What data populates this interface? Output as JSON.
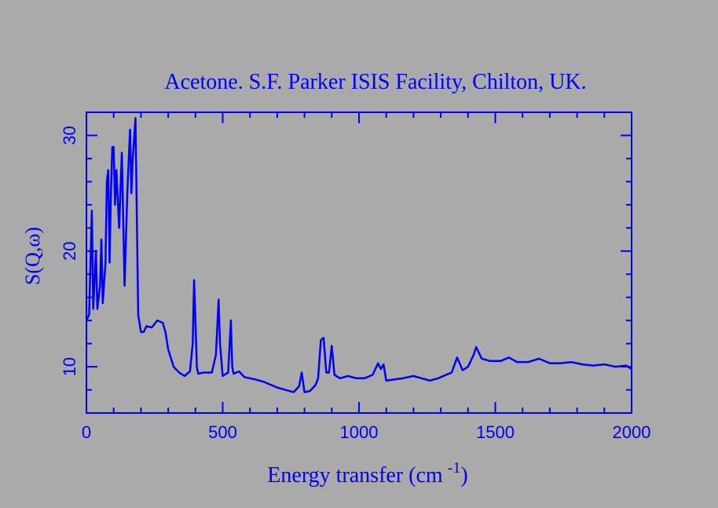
{
  "chart_data": {
    "type": "line",
    "title": "Acetone. S.F. Parker ISIS Facility, Chilton, UK.",
    "ylabel": "S(Q,ω)",
    "xlabel": {
      "main": "Energy transfer (cm",
      "sup": "-1",
      "end": ")"
    },
    "color": "#0000ff",
    "x": [
      0,
      10,
      20,
      25,
      35,
      40,
      50,
      55,
      60,
      70,
      75,
      80,
      85,
      90,
      95,
      100,
      105,
      110,
      120,
      130,
      140,
      150,
      160,
      165,
      170,
      180,
      185,
      190,
      200,
      210,
      220,
      240,
      260,
      280,
      290,
      300,
      320,
      340,
      360,
      380,
      390,
      395,
      400,
      405,
      410,
      430,
      460,
      475,
      485,
      490,
      500,
      520,
      530,
      535,
      540,
      560,
      580,
      600,
      620,
      650,
      680,
      700,
      730,
      760,
      780,
      790,
      800,
      820,
      840,
      850,
      860,
      870,
      880,
      890,
      900,
      910,
      930,
      960,
      990,
      1020,
      1050,
      1070,
      1080,
      1090,
      1100,
      1130,
      1160,
      1200,
      1230,
      1260,
      1290,
      1320,
      1340,
      1360,
      1380,
      1400,
      1420,
      1430,
      1450,
      1480,
      1520,
      1550,
      1580,
      1620,
      1660,
      1700,
      1740,
      1780,
      1820,
      1860,
      1900,
      1940,
      1980,
      2000
    ],
    "values": [
      14,
      14.5,
      23.5,
      15,
      20,
      15,
      17,
      21,
      15.5,
      19,
      26,
      27,
      19,
      25,
      29,
      29,
      24,
      27,
      22,
      28.5,
      17,
      25,
      30.5,
      25,
      28,
      31.5,
      23,
      14.5,
      13,
      13,
      13.5,
      13.4,
      14,
      13.8,
      13,
      11.5,
      10,
      9.5,
      9.2,
      9.6,
      12,
      17.5,
      14,
      10,
      9.4,
      9.5,
      9.5,
      11,
      15.8,
      12,
      9.2,
      9.5,
      14,
      10,
      9.4,
      9.6,
      9.1,
      9.0,
      8.9,
      8.7,
      8.4,
      8.2,
      8.0,
      7.8,
      8.3,
      9.5,
      7.8,
      7.9,
      8.4,
      9.0,
      12.3,
      12.5,
      9.5,
      9.5,
      11.8,
      9.3,
      9.0,
      9.2,
      9.0,
      9.0,
      9.3,
      10.3,
      9.8,
      10.2,
      8.8,
      8.9,
      9.0,
      9.2,
      9.0,
      8.8,
      9.0,
      9.3,
      9.5,
      10.8,
      9.7,
      10.0,
      11.0,
      11.7,
      10.7,
      10.5,
      10.5,
      10.8,
      10.4,
      10.4,
      10.7,
      10.3,
      10.3,
      10.4,
      10.2,
      10.1,
      10.2,
      10.0,
      10.1,
      9.8
    ],
    "xlim": [
      0,
      2000
    ],
    "ylim": [
      6,
      32
    ],
    "xticks": [
      0,
      500,
      1000,
      1500,
      2000
    ],
    "yticks": [
      10,
      20,
      30
    ],
    "xminorticks": [
      100,
      200,
      300,
      400,
      600,
      700,
      800,
      900,
      1100,
      1200,
      1300,
      1400,
      1600,
      1700,
      1800,
      1900
    ],
    "yminorticks": [
      8,
      12,
      14,
      16,
      18,
      22,
      24,
      26,
      28
    ]
  }
}
